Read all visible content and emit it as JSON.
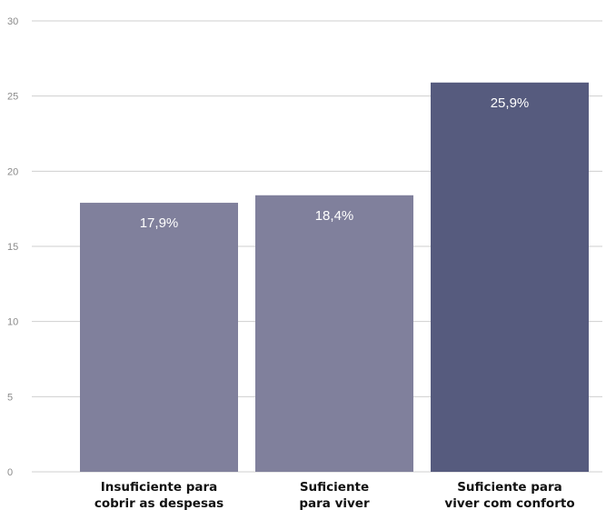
{
  "chart_data": {
    "type": "bar",
    "categories": [
      [
        "Insuficiente para",
        "cobrir as despesas"
      ],
      [
        "Suficiente",
        "para viver"
      ],
      [
        "Suficiente para",
        "viver com conforto"
      ]
    ],
    "values": [
      17.9,
      18.4,
      25.9
    ],
    "data_labels": [
      "17,9%",
      "18,4%",
      "25,9%"
    ],
    "colors": [
      "#80809c",
      "#80809c",
      "#565b7e"
    ],
    "ylim": [
      0,
      30
    ],
    "yticks": [
      0,
      5,
      10,
      15,
      20,
      25,
      30
    ],
    "grid": true,
    "title": "",
    "xlabel": "",
    "ylabel": ""
  }
}
